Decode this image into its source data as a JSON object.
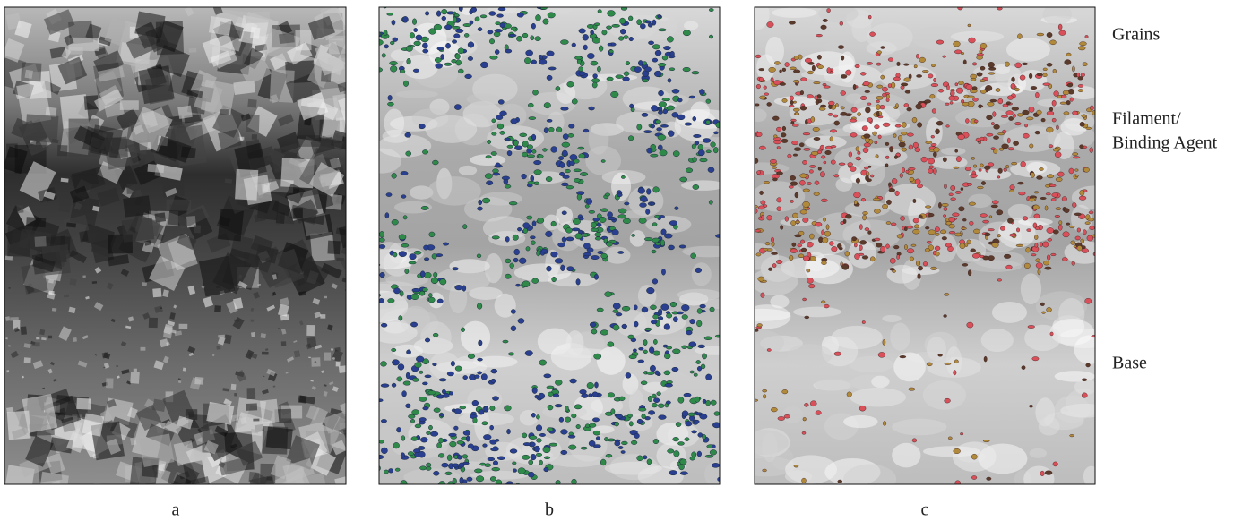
{
  "panels": {
    "labels": [
      "a",
      "b",
      "c"
    ]
  },
  "regions": [
    [
      "Grains"
    ],
    [
      "Filament/",
      "Binding Agent"
    ],
    [
      "Base"
    ]
  ]
}
